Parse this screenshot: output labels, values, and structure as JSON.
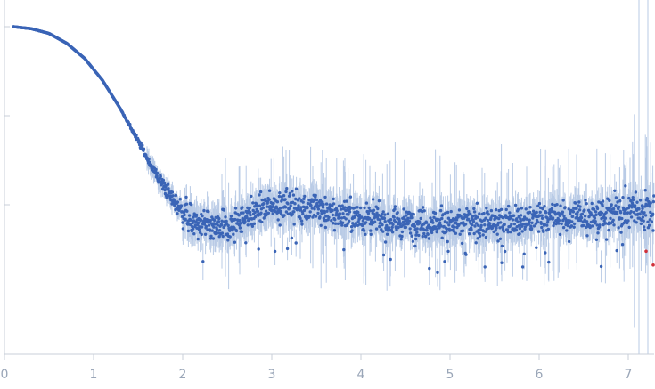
{
  "chart_data": {
    "type": "scatter",
    "title": "",
    "xlabel": "",
    "ylabel": "",
    "xlim": [
      0,
      7.3
    ],
    "ylog": true,
    "x_ticks": [
      "0",
      "1",
      "2",
      "3",
      "4",
      "5",
      "6",
      "7"
    ],
    "y_ticks": [
      1,
      0.1,
      0.01
    ],
    "y_tick_labels_visible": false,
    "grid": false,
    "colors": {
      "points": "#3a64b6",
      "error_bars": "#b9cbe6",
      "outliers": "#d0313a",
      "axis": "#c8cfd8",
      "tick_text": "#9aa6b8"
    },
    "profile": {
      "description_points": [
        [
          0.1,
          1.0
        ],
        [
          0.3,
          0.95
        ],
        [
          0.5,
          0.84
        ],
        [
          0.7,
          0.65
        ],
        [
          0.9,
          0.44
        ],
        [
          1.1,
          0.25
        ],
        [
          1.3,
          0.12
        ],
        [
          1.5,
          0.052
        ],
        [
          1.7,
          0.022
        ],
        [
          1.9,
          0.011
        ],
        [
          2.1,
          0.0066
        ],
        [
          2.3,
          0.0055
        ],
        [
          2.5,
          0.0058
        ],
        [
          2.7,
          0.0075
        ],
        [
          3.0,
          0.0095
        ],
        [
          3.2,
          0.01
        ],
        [
          3.5,
          0.009
        ],
        [
          3.8,
          0.0076
        ],
        [
          4.2,
          0.0066
        ],
        [
          4.6,
          0.0062
        ],
        [
          5.0,
          0.0061
        ],
        [
          5.5,
          0.0063
        ],
        [
          6.0,
          0.0068
        ],
        [
          6.5,
          0.0075
        ],
        [
          7.0,
          0.0085
        ],
        [
          7.3,
          0.009
        ]
      ]
    },
    "outliers": [
      [
        7.2,
        0.003
      ],
      [
        7.28,
        0.0021
      ]
    ]
  }
}
